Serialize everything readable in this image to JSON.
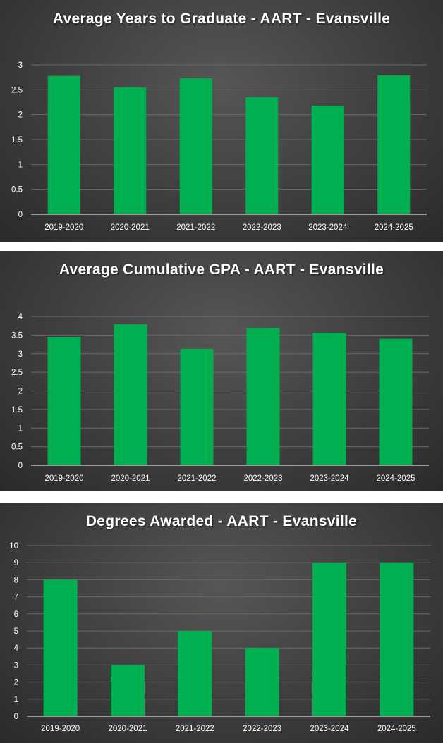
{
  "chart_data": [
    {
      "type": "bar",
      "title": "Average Years to Graduate - AART - Evansville",
      "categories": [
        "2019-2020",
        "2020-2021",
        "2021-2022",
        "2022-2023",
        "2023-2024",
        "2024-2025"
      ],
      "values": [
        2.78,
        2.55,
        2.73,
        2.35,
        2.18,
        2.79
      ],
      "ylim": [
        0,
        3
      ],
      "yticks": [
        0,
        0.5,
        1,
        1.5,
        2,
        2.5,
        3
      ],
      "bar_color": "#00b050",
      "grid": true
    },
    {
      "type": "bar",
      "title": "Average Cumulative GPA - AART - Evansville",
      "categories": [
        "2019-2020",
        "2020-2021",
        "2021-2022",
        "2022-2023",
        "2023-2024",
        "2024-2025"
      ],
      "values": [
        3.45,
        3.79,
        3.13,
        3.69,
        3.56,
        3.4
      ],
      "ylim": [
        0,
        4
      ],
      "yticks": [
        0,
        0.5,
        1,
        1.5,
        2,
        2.5,
        3,
        3.5,
        4
      ],
      "bar_color": "#00b050",
      "grid": true
    },
    {
      "type": "bar",
      "title": "Degrees Awarded - AART - Evansville",
      "categories": [
        "2019-2020",
        "2020-2021",
        "2021-2022",
        "2022-2023",
        "2023-2024",
        "2024-2025"
      ],
      "values": [
        8,
        3,
        5,
        4,
        9,
        9
      ],
      "ylim": [
        0,
        10
      ],
      "yticks": [
        0,
        1,
        2,
        3,
        4,
        5,
        6,
        7,
        8,
        9,
        10
      ],
      "bar_color": "#00b050",
      "grid": true
    }
  ]
}
